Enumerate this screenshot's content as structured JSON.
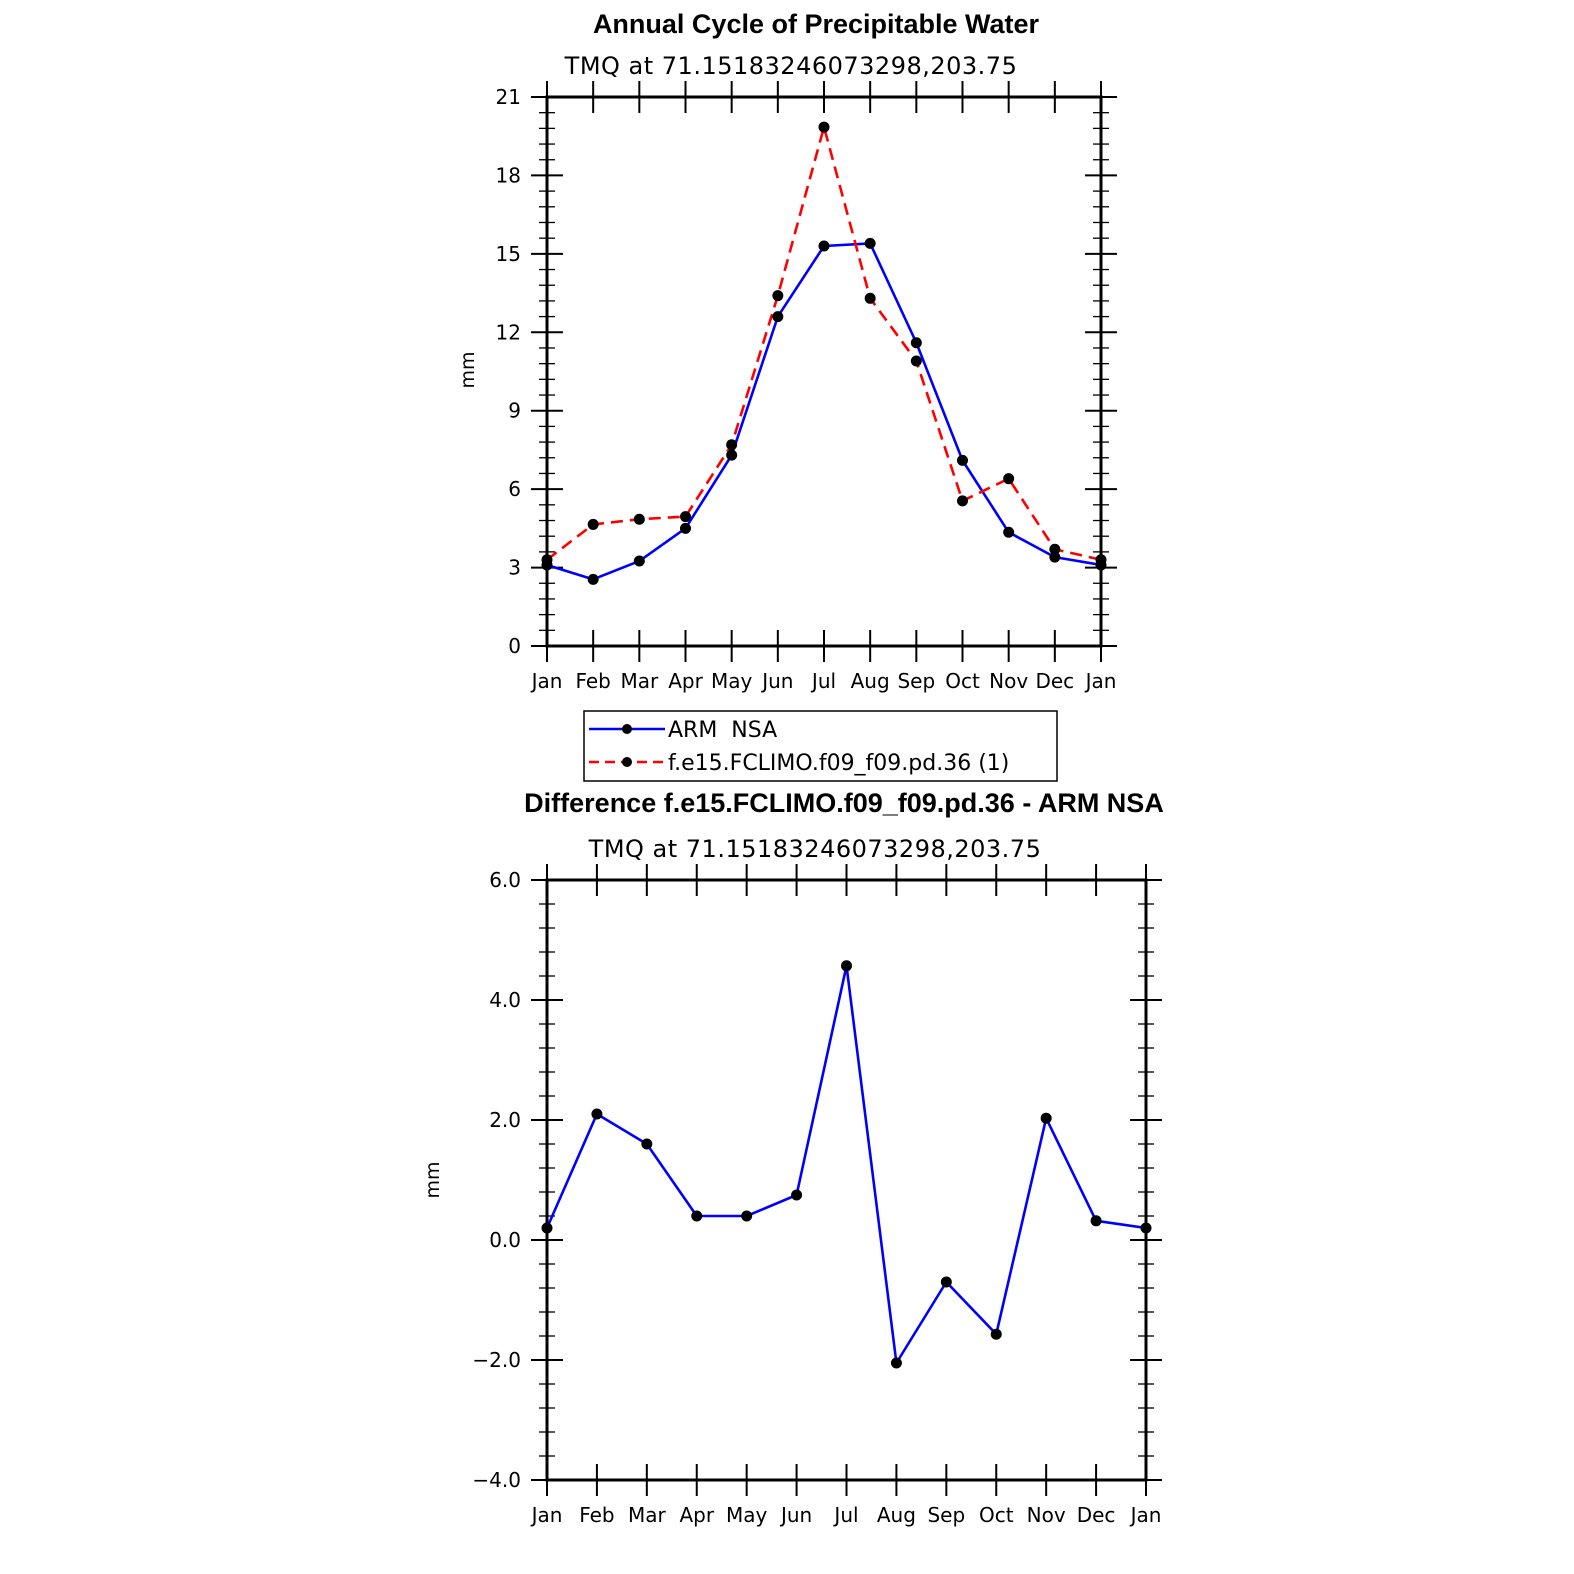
{
  "chart_data": [
    {
      "type": "line",
      "title": "Annual Cycle of Precipitable Water",
      "subtitle": "TMQ at 71.15183246073298,203.75",
      "ylabel": "mm",
      "xlabel": "",
      "categories": [
        "Jan",
        "Feb",
        "Mar",
        "Apr",
        "May",
        "Jun",
        "Jul",
        "Aug",
        "Sep",
        "Oct",
        "Nov",
        "Dec",
        "Jan"
      ],
      "ylim": [
        0,
        21
      ],
      "yticks": [
        "0",
        "3",
        "6",
        "9",
        "12",
        "15",
        "18",
        "21"
      ],
      "series": [
        {
          "name": "ARM  NSA",
          "color": "#0000ff",
          "dash": "solid",
          "values": [
            3.1,
            2.55,
            3.25,
            4.5,
            7.3,
            12.6,
            15.3,
            15.4,
            11.6,
            7.1,
            4.35,
            3.4,
            3.1
          ]
        },
        {
          "name": "f.e15.FCLIMO.f09_f09.pd.36 (1)",
          "color": "#ff0000",
          "dash": "dashed",
          "values": [
            3.3,
            4.65,
            4.85,
            4.95,
            7.7,
            13.4,
            19.85,
            13.3,
            10.9,
            5.55,
            6.4,
            3.7,
            3.3
          ]
        }
      ],
      "legend": {
        "position": "below"
      }
    },
    {
      "type": "line",
      "title": "Difference f.e15.FCLIMO.f09_f09.pd.36 - ARM NSA",
      "subtitle": "TMQ at 71.15183246073298,203.75",
      "ylabel": "mm",
      "xlabel": "",
      "categories": [
        "Jan",
        "Feb",
        "Mar",
        "Apr",
        "May",
        "Jun",
        "Jul",
        "Aug",
        "Sep",
        "Oct",
        "Nov",
        "Dec",
        "Jan"
      ],
      "ylim": [
        -4.0,
        6.0
      ],
      "yticks": [
        "−4.0",
        "−2.0",
        "0.0",
        "2.0",
        "4.0",
        "6.0"
      ],
      "series": [
        {
          "name": "Difference",
          "color": "#0000ff",
          "dash": "solid",
          "values": [
            0.2,
            2.1,
            1.6,
            0.4,
            0.4,
            0.75,
            4.57,
            -2.05,
            -0.7,
            -1.57,
            2.03,
            0.32,
            0.2
          ]
        }
      ]
    }
  ]
}
